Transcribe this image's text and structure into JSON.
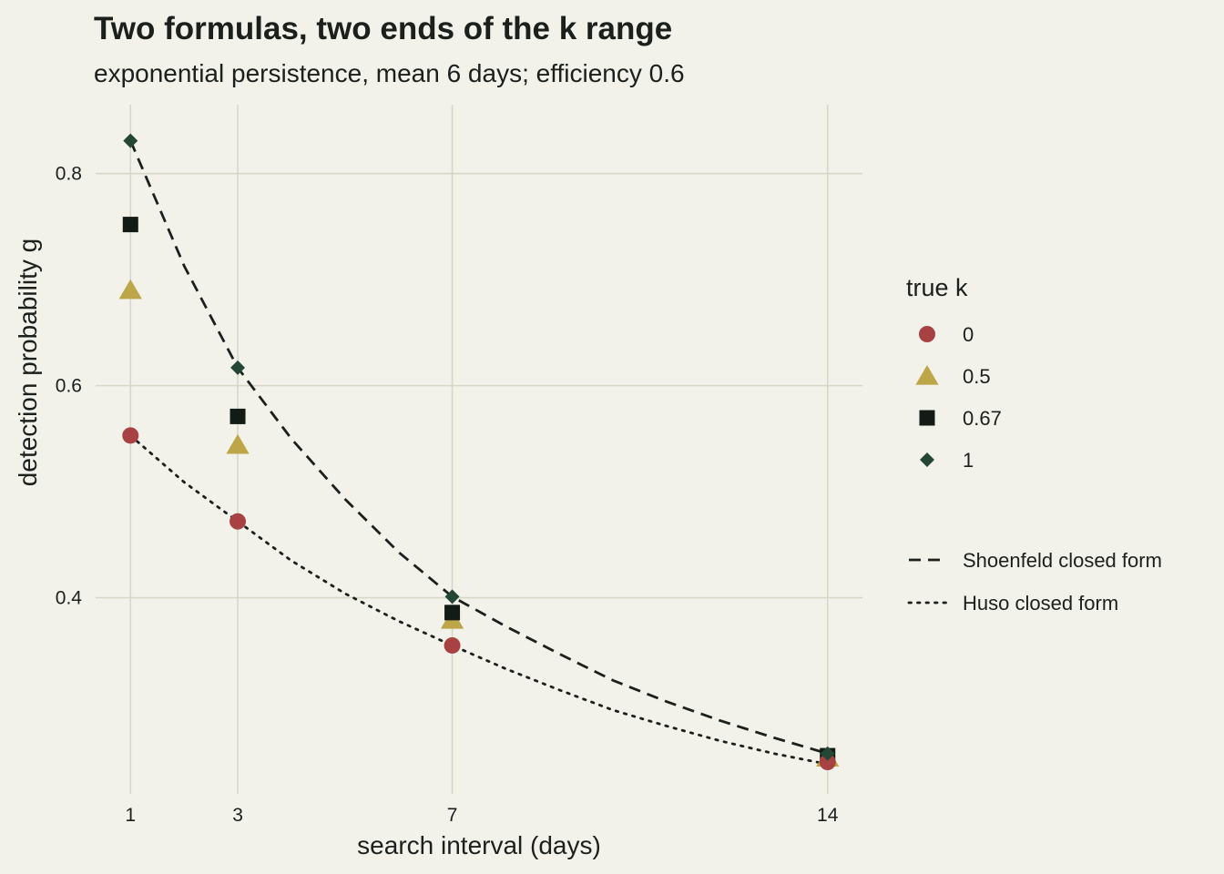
{
  "chart_data": {
    "type": "scatter",
    "title": "Two formulas, two ends of the k range",
    "subtitle": "exponential persistence, mean 6 days; efficiency 0.6",
    "xlabel": "search interval (days)",
    "ylabel": "detection probability g",
    "x_ticks": [
      1,
      3,
      7,
      14
    ],
    "x_tick_labels": [
      "1",
      "3",
      "7",
      "14"
    ],
    "y_ticks": [
      0.4,
      0.6,
      0.8
    ],
    "y_tick_labels": [
      "0.4",
      "0.6",
      "0.8"
    ],
    "xlim": [
      0.35,
      14.65
    ],
    "ylim": [
      0.215,
      0.865
    ],
    "grid": true,
    "legend_position": "right",
    "legend_title": "true k",
    "colors": {
      "background": "#f2f1ea",
      "grid": "#d7d7c6",
      "text": "#1b201d",
      "line": "#1b201d"
    },
    "series": [
      {
        "name": "0",
        "shape": "circle",
        "color": "#a84142",
        "x": [
          1,
          3,
          7,
          14
        ],
        "y": [
          0.553,
          0.472,
          0.355,
          0.245
        ]
      },
      {
        "name": "0.5",
        "shape": "triangle",
        "color": "#bda647",
        "x": [
          1,
          3,
          7,
          14
        ],
        "y": [
          0.69,
          0.544,
          0.379,
          0.249
        ]
      },
      {
        "name": "0.67",
        "shape": "square",
        "color": "#141a16",
        "x": [
          1,
          3,
          7,
          14
        ],
        "y": [
          0.752,
          0.571,
          0.386,
          0.251
        ]
      },
      {
        "name": "1",
        "shape": "diamond",
        "color": "#244634",
        "x": [
          1,
          3,
          7,
          14
        ],
        "y": [
          0.831,
          0.617,
          0.401,
          0.253
        ]
      }
    ],
    "lines": [
      {
        "name": "Shoenfeld closed form",
        "style": "dashed",
        "color": "#1b201d",
        "x": [
          1,
          2,
          3,
          4,
          5,
          6,
          7,
          8,
          9,
          10,
          11,
          12,
          13,
          14
        ],
        "y": [
          0.831,
          0.713,
          0.617,
          0.55,
          0.493,
          0.443,
          0.401,
          0.373,
          0.347,
          0.322,
          0.302,
          0.284,
          0.268,
          0.253
        ]
      },
      {
        "name": "Huso closed form",
        "style": "dotted",
        "color": "#1b201d",
        "x": [
          1,
          2,
          3,
          4,
          5,
          6,
          7,
          8,
          9,
          10,
          11,
          12,
          13,
          14
        ],
        "y": [
          0.553,
          0.509,
          0.472,
          0.435,
          0.404,
          0.378,
          0.355,
          0.333,
          0.313,
          0.294,
          0.279,
          0.265,
          0.253,
          0.243
        ]
      }
    ]
  }
}
